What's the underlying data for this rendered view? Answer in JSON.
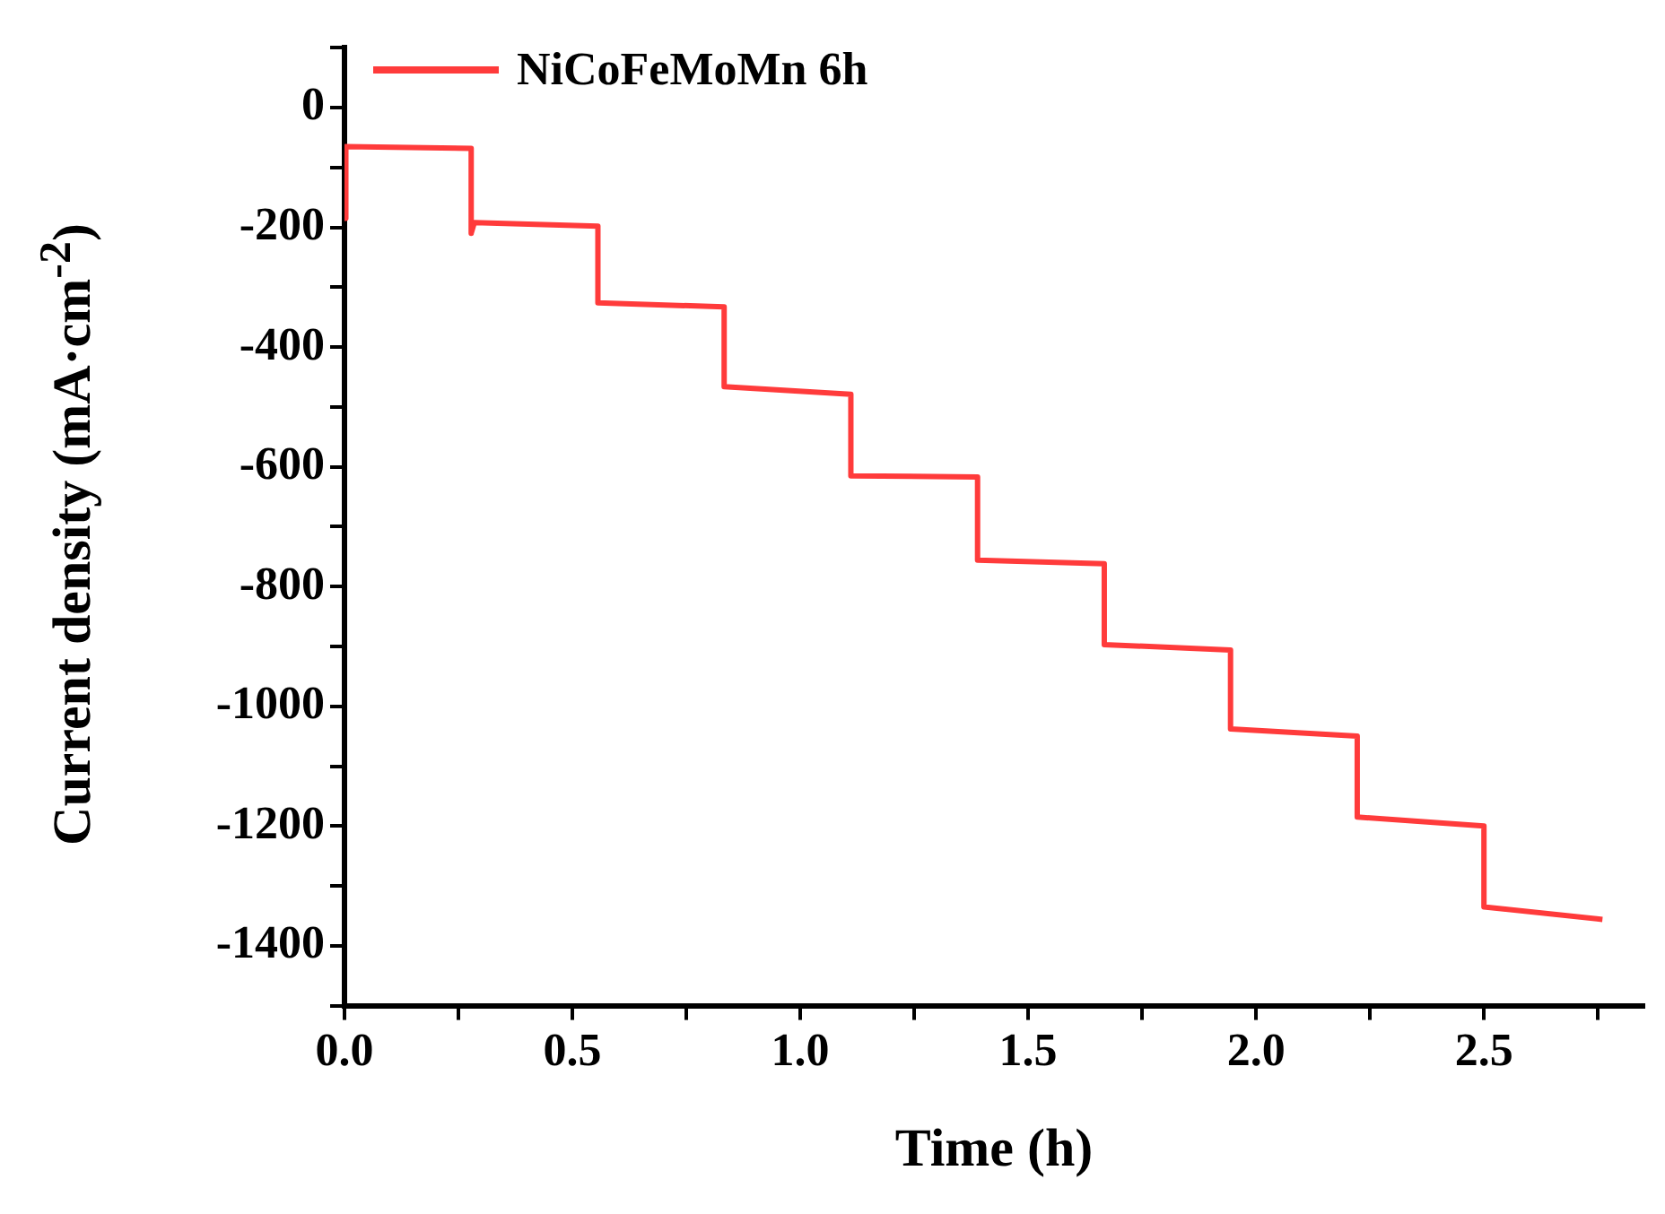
{
  "chart_data": {
    "type": "line",
    "xlabel": "Time (h)",
    "ylabel": "Current density (mA·cm$^{-2}$)",
    "xlim": [
      0,
      2.85
    ],
    "ylim": [
      -1500,
      100
    ],
    "xticks": [
      {
        "value": 0,
        "label": "0.0"
      },
      {
        "value": 0.25,
        "label": null
      },
      0.5,
      {
        "value": 0.75,
        "label": null
      },
      {
        "value": 1,
        "label": "1.0"
      },
      {
        "value": 1.25,
        "label": null
      },
      1.5,
      {
        "value": 1.75,
        "label": null
      },
      {
        "value": 2,
        "label": "2.0"
      },
      {
        "value": 2.25,
        "label": null
      },
      2.5,
      {
        "value": 2.75,
        "label": null
      }
    ],
    "yticks": [
      {
        "value": -1500,
        "label": null
      },
      -1400,
      {
        "value": -1300,
        "label": null
      },
      -1200,
      {
        "value": -1100,
        "label": null
      },
      -1000,
      {
        "value": -900,
        "label": null
      },
      -800,
      {
        "value": -700,
        "label": null
      },
      -600,
      {
        "value": -500,
        "label": null
      },
      -400,
      {
        "value": -300,
        "label": null
      },
      -200,
      {
        "value": -100,
        "label": null
      },
      0,
      {
        "value": 100,
        "label": null
      }
    ],
    "grid": false,
    "legend": "top left",
    "marker": "none",
    "line_style": "solid",
    "series": [
      {
        "name": "NiCoFeMoMn 6h",
        "color": "#ff3b3b",
        "x": [
          0,
          0.003,
          0.278,
          0.278,
          0.285,
          0.556,
          0.556,
          0.833,
          0.833,
          1.111,
          1.111,
          1.389,
          1.389,
          1.667,
          1.667,
          1.944,
          1.944,
          2.222,
          2.222,
          2.5,
          2.5,
          2.76
        ],
        "values": [
          -185,
          -65,
          -68,
          -210,
          -192,
          -198,
          -326,
          -333,
          -466,
          -479,
          -615,
          -617,
          -756,
          -762,
          -897,
          -906,
          -1038,
          -1050,
          -1185,
          -1200,
          -1335,
          -1356
        ]
      }
    ]
  }
}
